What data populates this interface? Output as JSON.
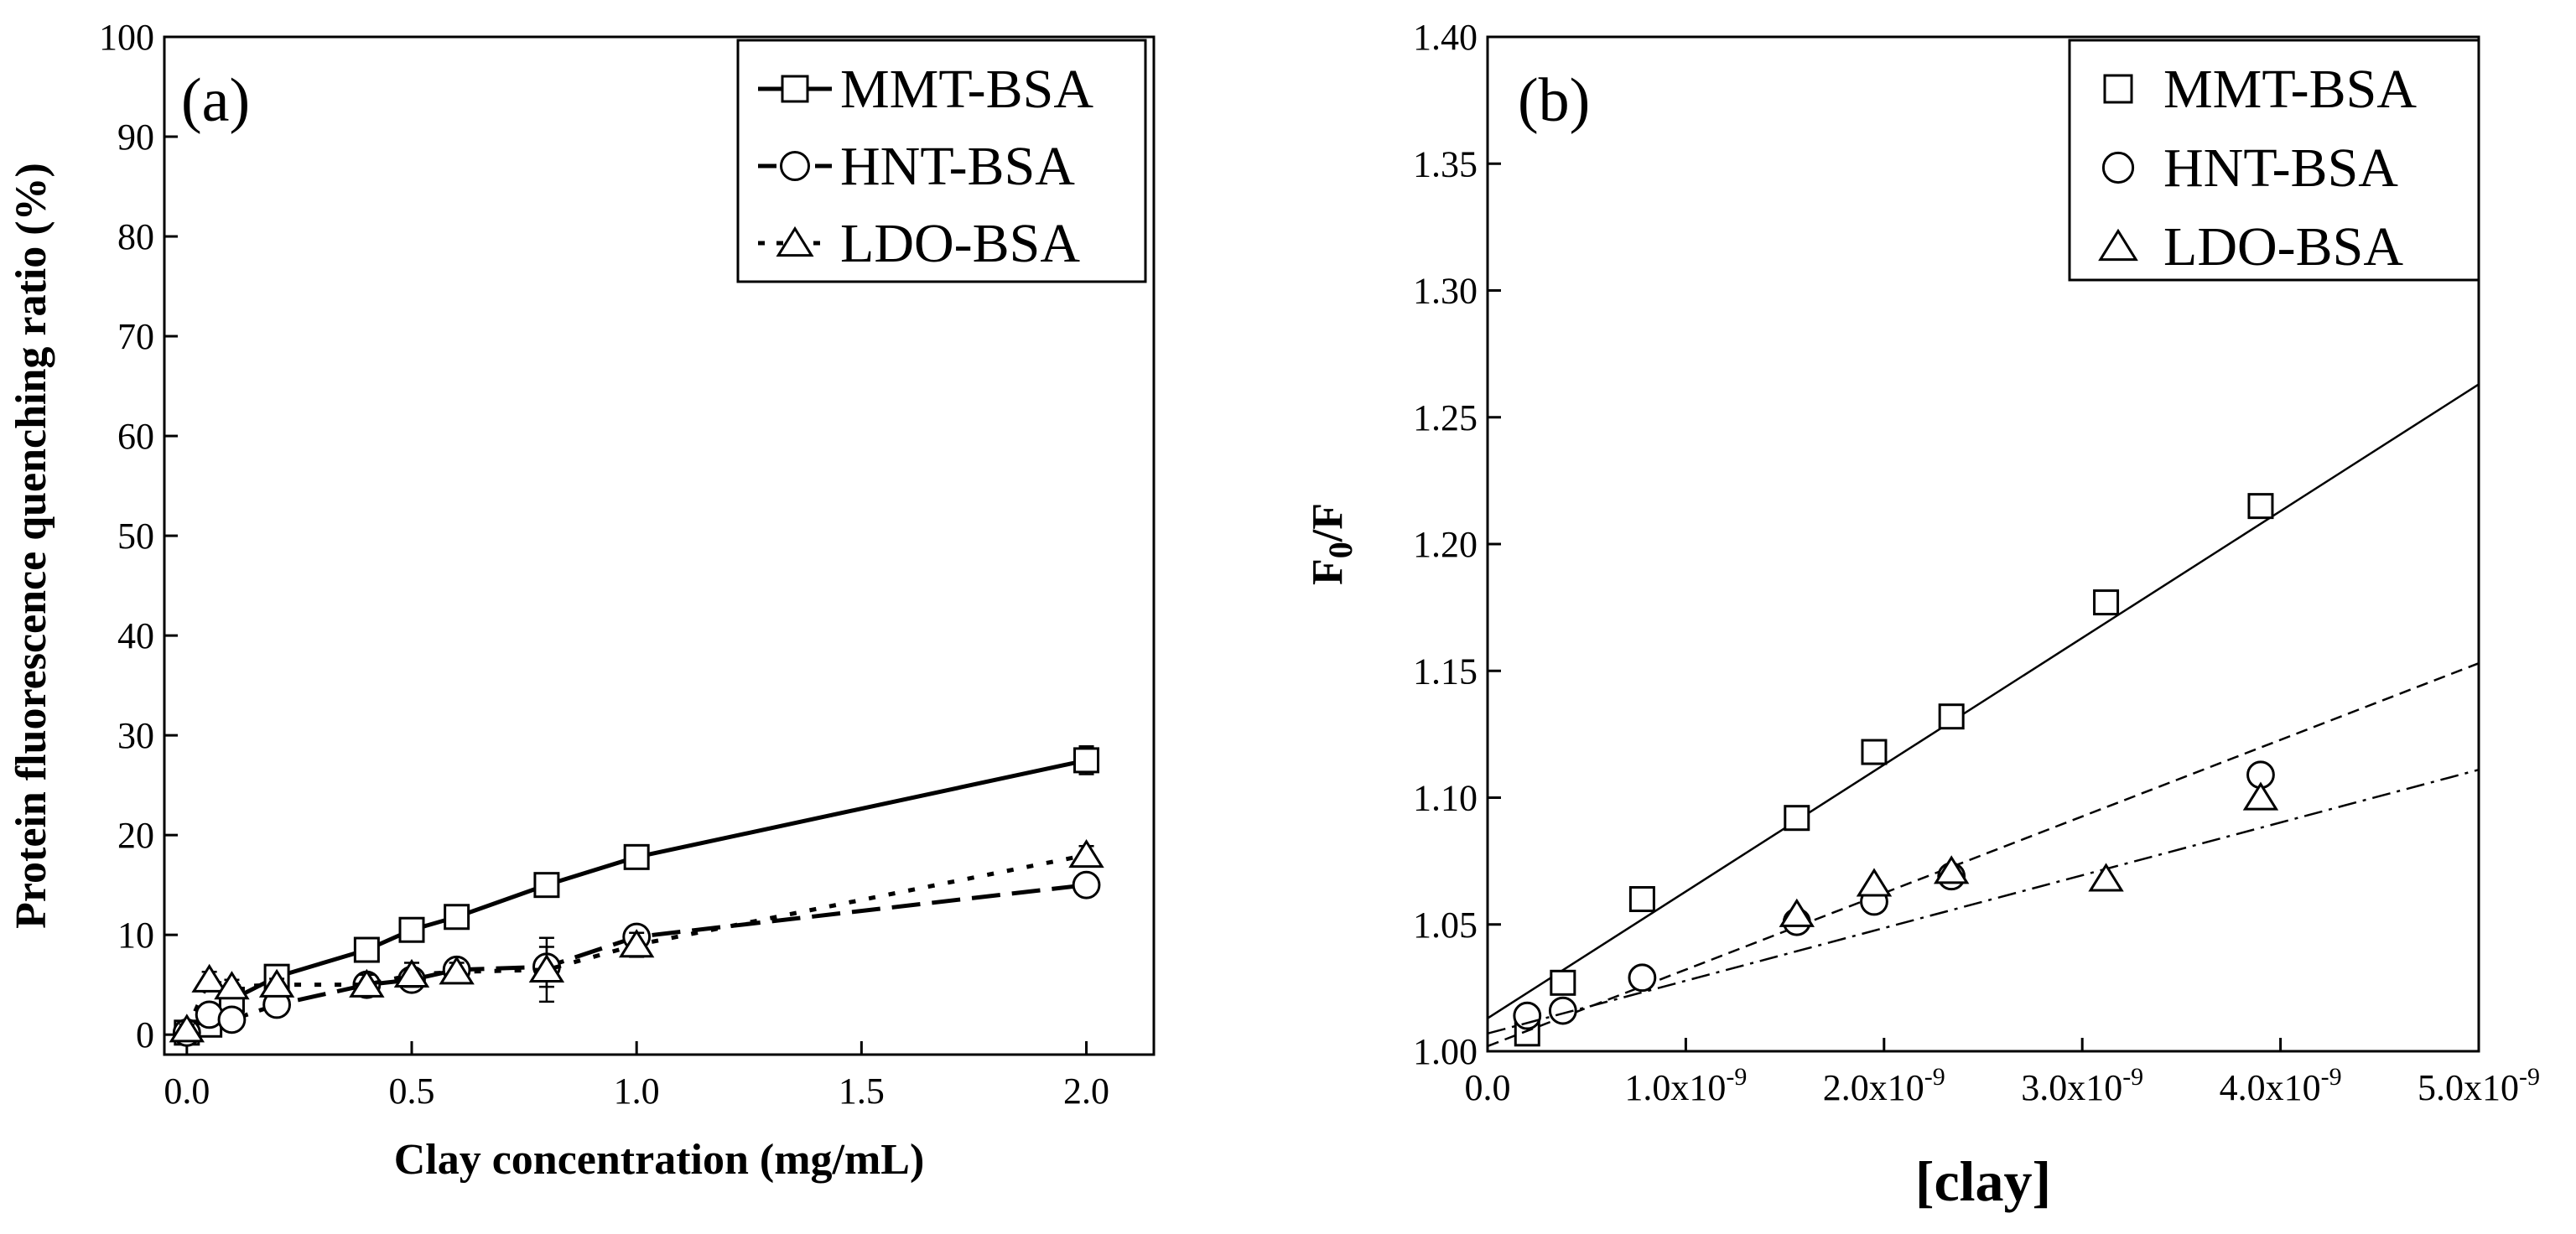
{
  "chart_data": [
    {
      "type": "line",
      "panel_label": "(a)",
      "xlabel": "Clay concentration (mg/mL)",
      "ylabel": "Protein fluorescence quenching ratio (%)",
      "xlim": [
        -0.05,
        2.15
      ],
      "ylim": [
        -2,
        100
      ],
      "xticks": [
        0.0,
        0.5,
        1.0,
        1.5,
        2.0
      ],
      "xtick_labels": [
        "0.0",
        "0.5",
        "1.0",
        "1.5",
        "2.0"
      ],
      "yticks": [
        0,
        10,
        20,
        30,
        40,
        50,
        60,
        70,
        80,
        90,
        100
      ],
      "ytick_labels": [
        "0",
        "10",
        "20",
        "30",
        "40",
        "50",
        "60",
        "70",
        "80",
        "90",
        "100"
      ],
      "legend_position": "top-right",
      "grid": false,
      "series": [
        {
          "name": "MMT-BSA",
          "marker": "square",
          "line_style": "solid",
          "x": [
            0.0,
            0.05,
            0.1,
            0.2,
            0.4,
            0.5,
            0.6,
            0.8,
            1.0,
            2.0
          ],
          "y": [
            0.2,
            1.0,
            3.5,
            5.8,
            8.5,
            10.5,
            11.8,
            15.0,
            17.8,
            27.5
          ],
          "yerr": [
            0.5,
            0.6,
            0.5,
            0.6,
            0.8,
            0.7,
            0.8,
            0.9,
            0.9,
            1.4
          ]
        },
        {
          "name": "HNT-BSA",
          "marker": "circle",
          "line_style": "dashed",
          "x": [
            0.0,
            0.05,
            0.1,
            0.2,
            0.4,
            0.5,
            0.6,
            0.8,
            1.0,
            2.0
          ],
          "y": [
            0.2,
            2.0,
            1.5,
            3.0,
            5.0,
            5.5,
            6.5,
            6.8,
            9.8,
            15.0
          ],
          "yerr": [
            0.4,
            0.5,
            0.5,
            0.6,
            0.8,
            0.8,
            0.7,
            2.0,
            0.8,
            0.8
          ]
        },
        {
          "name": "LDO-BSA",
          "marker": "triangle",
          "line_style": "dotted",
          "x": [
            0.0,
            0.05,
            0.1,
            0.2,
            0.4,
            0.5,
            0.6,
            0.8,
            1.0,
            2.0
          ],
          "y": [
            0.5,
            5.5,
            4.8,
            5.0,
            5.0,
            6.0,
            6.3,
            6.5,
            9.0,
            18.0
          ],
          "yerr": [
            0.5,
            0.8,
            0.7,
            0.6,
            1.0,
            1.2,
            0.9,
            3.2,
            1.2,
            0.9
          ]
        }
      ]
    },
    {
      "type": "scatter",
      "panel_label": "(b)",
      "xlabel": "[clay]",
      "ylabel_main": "F",
      "ylabel_sub": "0",
      "ylabel_rest": "/F",
      "xlim": [
        0,
        5e-09
      ],
      "ylim": [
        1.0,
        1.4
      ],
      "xticks": [
        0,
        1e-09,
        2e-09,
        3e-09,
        4e-09,
        5e-09
      ],
      "xtick_labels": [
        {
          "base": "0.0",
          "exp": ""
        },
        {
          "base": "1.0x10",
          "exp": "-9"
        },
        {
          "base": "2.0x10",
          "exp": "-9"
        },
        {
          "base": "3.0x10",
          "exp": "-9"
        },
        {
          "base": "4.0x10",
          "exp": "-9"
        },
        {
          "base": "5.0x10",
          "exp": "-9"
        }
      ],
      "yticks": [
        1.0,
        1.05,
        1.1,
        1.15,
        1.2,
        1.25,
        1.3,
        1.35,
        1.4
      ],
      "ytick_labels": [
        "1.00",
        "1.05",
        "1.10",
        "1.15",
        "1.20",
        "1.25",
        "1.30",
        "1.35",
        "1.40"
      ],
      "legend_position": "top-right",
      "grid": false,
      "series": [
        {
          "name": "MMT-BSA",
          "marker": "square",
          "x": [
            2e-10,
            3.8e-10,
            7.8e-10,
            1.56e-09,
            1.95e-09,
            2.34e-09,
            3.12e-09,
            3.9e-09
          ],
          "y": [
            1.007,
            1.027,
            1.06,
            1.092,
            1.118,
            1.132,
            1.177,
            1.215
          ],
          "fit": {
            "x": [
              0,
              5e-09
            ],
            "y": [
              1.013,
              1.263
            ],
            "line_style": "solid"
          }
        },
        {
          "name": "HNT-BSA",
          "marker": "circle",
          "x": [
            2e-10,
            3.8e-10,
            7.8e-10,
            1.56e-09,
            1.95e-09,
            2.34e-09,
            3.9e-09
          ],
          "y": [
            1.014,
            1.016,
            1.029,
            1.051,
            1.059,
            1.069,
            1.109
          ],
          "fit": {
            "x": [
              0,
              5e-09
            ],
            "y": [
              1.002,
              1.153
            ],
            "line_style": "dashed"
          }
        },
        {
          "name": "LDO-BSA",
          "marker": "triangle",
          "x": [
            1.56e-09,
            1.95e-09,
            2.34e-09,
            3.12e-09,
            3.9e-09
          ],
          "y": [
            1.054,
            1.066,
            1.071,
            1.068,
            1.1
          ],
          "fit": {
            "x": [
              0,
              5e-09
            ],
            "y": [
              1.007,
              1.111
            ],
            "line_style": "dash-dot"
          }
        }
      ]
    }
  ]
}
